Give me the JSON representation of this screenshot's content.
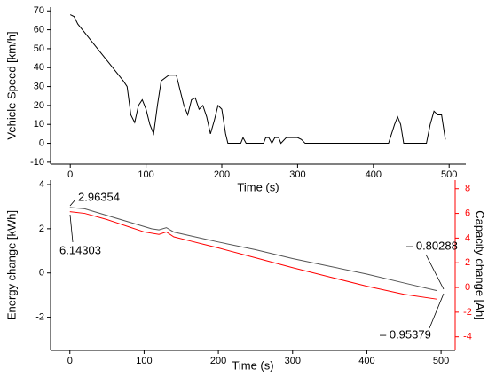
{
  "chart_data": [
    {
      "type": "line",
      "ylabel": "Vehicle Speed [km/h]",
      "xlabel": "Time (s)",
      "xlim": [
        -26,
        522
      ],
      "xticks": [
        0,
        100,
        200,
        300,
        400,
        500
      ],
      "ylim": [
        -11,
        72
      ],
      "yticks": [
        -10,
        0,
        10,
        20,
        30,
        40,
        50,
        60,
        70
      ],
      "series": [
        {
          "color": "#000000",
          "x": [
            0,
            5,
            10,
            20,
            30,
            40,
            50,
            60,
            70,
            75,
            80,
            85,
            90,
            95,
            100,
            105,
            110,
            115,
            120,
            130,
            140,
            145,
            150,
            155,
            160,
            165,
            170,
            175,
            180,
            185,
            190,
            195,
            200,
            205,
            208,
            225,
            228,
            232,
            255,
            258,
            262,
            266,
            270,
            275,
            278,
            285,
            300,
            305,
            310,
            420,
            428,
            432,
            436,
            440,
            470,
            475,
            480,
            485,
            490,
            495
          ],
          "values": [
            68,
            67,
            63,
            58,
            53,
            48,
            43,
            38,
            33,
            30,
            15,
            11,
            20,
            23,
            18,
            10,
            5,
            20,
            33,
            36,
            36,
            28,
            20,
            15,
            23,
            24,
            18,
            20,
            14,
            5,
            12,
            20,
            18,
            5,
            0,
            0,
            3,
            0,
            0,
            3,
            3,
            0,
            3,
            3,
            0,
            3,
            3,
            2,
            0,
            0,
            10,
            14,
            10,
            0,
            0,
            10,
            17,
            15,
            15,
            2
          ]
        }
      ]
    },
    {
      "type": "line",
      "ylabel": "Energy change [kWh]",
      "y2label": "Capacity change [Ah]",
      "xlabel": "Time (s)",
      "xlim": [
        -26,
        519
      ],
      "xticks": [
        0,
        100,
        200,
        300,
        400,
        500
      ],
      "ylim": [
        -3.5,
        4.2
      ],
      "yticks": [
        -2,
        0,
        2,
        4
      ],
      "y2lim": [
        -5.1,
        8.7
      ],
      "y2ticks": [
        -4,
        -2,
        0,
        2,
        4,
        6,
        8
      ],
      "annotations": [
        "2.96354",
        "6.14303",
        "– 0.80288",
        "– 0.95379"
      ],
      "series": [
        {
          "color": "#555555",
          "x": [
            0,
            20,
            50,
            80,
            100,
            110,
            120,
            130,
            140,
            160,
            180,
            200,
            250,
            300,
            350,
            400,
            450,
            495
          ],
          "values": [
            2.96354,
            2.9,
            2.6,
            2.3,
            2.1,
            2.0,
            1.95,
            2.05,
            1.85,
            1.7,
            1.55,
            1.4,
            1.05,
            0.65,
            0.3,
            -0.05,
            -0.45,
            -0.80288
          ]
        },
        {
          "color": "#ff0000",
          "axis": "y2",
          "x": [
            0,
            20,
            50,
            80,
            100,
            120,
            130,
            140,
            160,
            180,
            200,
            250,
            300,
            350,
            400,
            450,
            495
          ],
          "values": [
            6.14303,
            6.0,
            5.5,
            4.9,
            4.5,
            4.3,
            4.5,
            4.1,
            3.8,
            3.5,
            3.2,
            2.4,
            1.6,
            0.85,
            0.1,
            -0.55,
            -0.95379
          ]
        }
      ]
    }
  ]
}
